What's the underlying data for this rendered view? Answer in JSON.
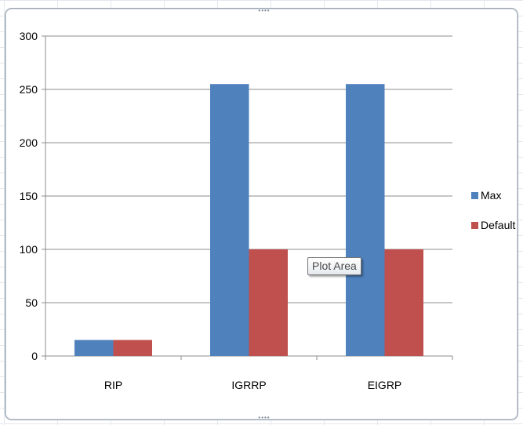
{
  "chart_data": {
    "type": "bar",
    "categories": [
      "RIP",
      "IGRRP",
      "EIGRP"
    ],
    "series": [
      {
        "name": "Max",
        "values": [
          15,
          255,
          255
        ],
        "color": "#4f81bd"
      },
      {
        "name": "Default",
        "values": [
          15,
          100,
          100
        ],
        "color": "#c0504d"
      }
    ],
    "ylim": [
      0,
      300
    ],
    "yticks": [
      "0",
      "50",
      "100",
      "150",
      "200",
      "250",
      "300"
    ],
    "grid": true,
    "legend_position": "right"
  },
  "tooltip": {
    "text": "Plot Area"
  },
  "handles": {
    "top": "••••",
    "bottom": "••••"
  }
}
